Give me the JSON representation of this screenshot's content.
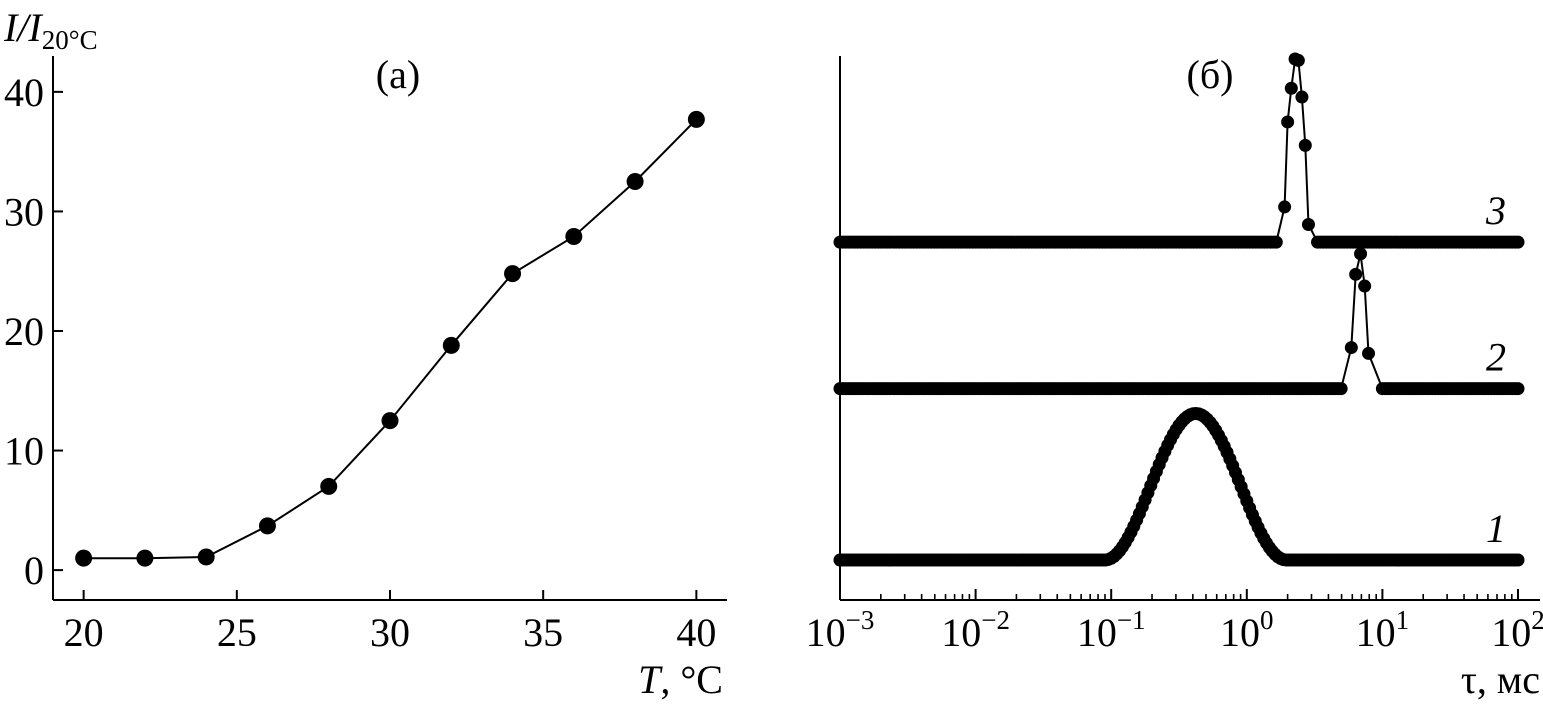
{
  "chart_data": [
    {
      "type": "line",
      "panel_label": "(а)",
      "ylabel_main": "I/I",
      "ylabel_sub": "20°C",
      "xlabel_var": "T",
      "xlabel_unit": ", °C",
      "xlim": [
        19,
        41
      ],
      "ylim": [
        -2.5,
        43
      ],
      "xticks": [
        20,
        25,
        30,
        35,
        40
      ],
      "yticks": [
        0,
        10,
        20,
        30,
        40
      ],
      "x": [
        20,
        22,
        24,
        26,
        28,
        30,
        32,
        34,
        36,
        38,
        40
      ],
      "y": [
        1.0,
        1.0,
        1.1,
        3.7,
        7.0,
        12.5,
        18.8,
        24.8,
        27.9,
        32.5,
        37.7
      ]
    },
    {
      "type": "scatter",
      "panel_label": "(б)",
      "xlabel": "τ, мс",
      "xscale": "log",
      "xlim": [
        0.001,
        100
      ],
      "xticks": [
        {
          "base": "10",
          "exp": "−3",
          "value": 0.001
        },
        {
          "base": "10",
          "exp": "−2",
          "value": 0.01
        },
        {
          "base": "10",
          "exp": "−1",
          "value": 0.1
        },
        {
          "base": "10",
          "exp": "0",
          "value": 1
        },
        {
          "base": "10",
          "exp": "1",
          "value": 10
        },
        {
          "base": "10",
          "exp": "2",
          "value": 100
        }
      ],
      "series": [
        {
          "name": "1",
          "baseline": 0,
          "peak_center": 0.42,
          "peak_log_halfwidth": 0.67,
          "peak_height": 1.0,
          "peak_x": [],
          "peak_y": []
        },
        {
          "name": "2",
          "baseline": 1.17,
          "peak_center": 7.0,
          "peak_log_halfwidth": 0.14,
          "peak_height": 1.0,
          "peak_x": [
            5.9,
            6.35,
            6.9,
            7.4,
            7.9
          ],
          "peak_y": [
            0.28,
            0.78,
            0.92,
            0.7,
            0.24
          ]
        },
        {
          "name": "3",
          "baseline": 2.17,
          "peak_center": 2.35,
          "peak_log_halfwidth": 0.14,
          "peak_height": 1.0,
          "peak_x": [
            1.9,
            2.0,
            2.13,
            2.27,
            2.4,
            2.55,
            2.7,
            2.85
          ],
          "peak_y": [
            0.24,
            0.82,
            1.05,
            1.25,
            1.24,
            0.99,
            0.66,
            0.12
          ]
        }
      ]
    }
  ]
}
